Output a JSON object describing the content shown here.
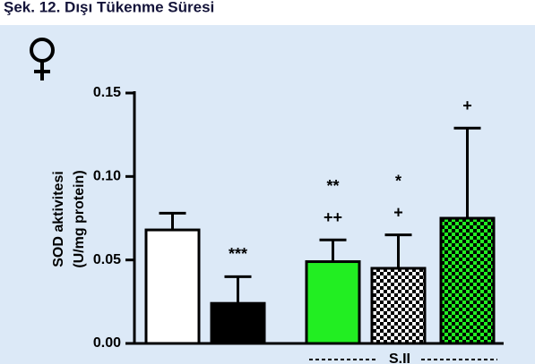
{
  "chart_data": {
    "type": "bar",
    "title": "Şek. 12. Dışı Tükenme Süresi",
    "ylabel": [
      "SOD aktivitesi",
      "(U/mg protein)"
    ],
    "categories": [
      null,
      null,
      null,
      null,
      null
    ],
    "values": [
      0.068,
      0.024,
      0.049,
      0.045,
      0.075
    ],
    "errors": [
      0.01,
      0.016,
      0.013,
      0.02,
      0.054
    ],
    "colors": [
      "#ffffff",
      "#000000",
      "#22ee22",
      "#ffffff",
      "#22ee22"
    ],
    "patterns": [
      false,
      false,
      false,
      true,
      true
    ],
    "significance": [
      [],
      [
        "***"
      ],
      [
        "**",
        "++"
      ],
      [
        "*",
        "+"
      ],
      [
        "+"
      ]
    ],
    "group_label": "S.II",
    "ylim": [
      0,
      0.15
    ],
    "yticks": [
      {
        "value": 0,
        "label": "0.00"
      },
      {
        "value": 0.05,
        "label": "0.05"
      },
      {
        "value": 0.1,
        "label": "0.10"
      },
      {
        "value": 0.15,
        "label": "0.15"
      }
    ]
  }
}
